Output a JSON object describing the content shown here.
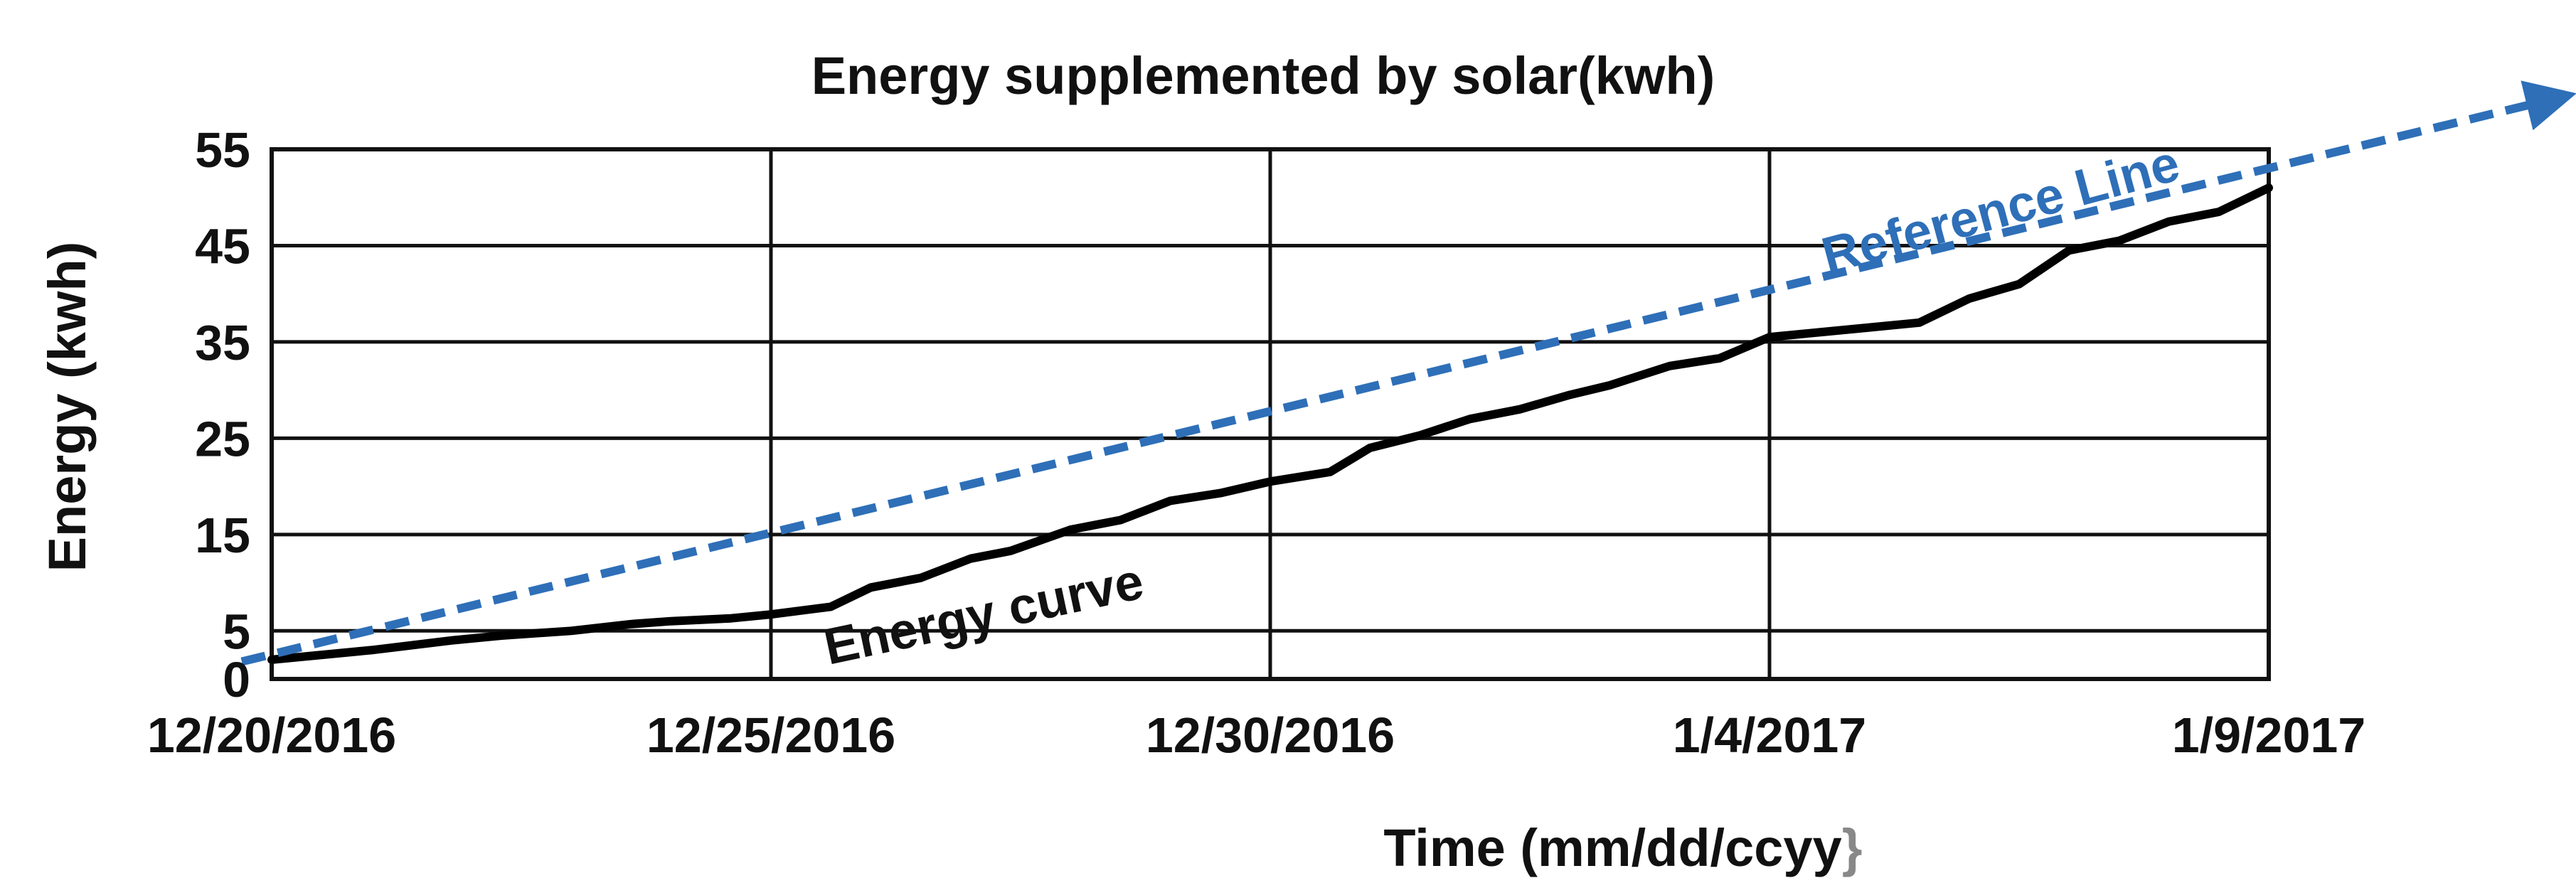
{
  "chart_data": {
    "type": "line",
    "title": "Energy supplemented by solar(kwh)",
    "xlabel": "Time (mm/dd/ccyy",
    "xlabel_suffix": "}",
    "ylabel": "Energy (kwh)",
    "ylim": [
      0,
      55
    ],
    "yticks": [
      0,
      5,
      15,
      25,
      35,
      45,
      55
    ],
    "xlim": [
      0,
      20
    ],
    "xticks": [
      {
        "day": 0,
        "label": "12/20/2016"
      },
      {
        "day": 5,
        "label": "12/25/2016"
      },
      {
        "day": 10,
        "label": "12/30/2016"
      },
      {
        "day": 15,
        "label": "1/4/2017"
      },
      {
        "day": 20,
        "label": "1/9/2017"
      }
    ],
    "grid": true,
    "colors": {
      "energy": "#000000",
      "reference": "#2e6fb8",
      "axis": "#111111",
      "suffix": "#888888"
    },
    "series": [
      {
        "name": "Energy curve",
        "style": "solid",
        "x": [
          0,
          1,
          1.8,
          2.3,
          3,
          3.6,
          4,
          4.6,
          5,
          5.6,
          6,
          6.5,
          7,
          7.4,
          8,
          8.5,
          9,
          9.5,
          10,
          10.6,
          11,
          11.5,
          12,
          12.5,
          13,
          13.4,
          14,
          14.5,
          15,
          15.5,
          16,
          16.5,
          17,
          17.5,
          18,
          18.5,
          19,
          19.5,
          20
        ],
        "values": [
          2,
          3,
          4,
          4.5,
          5,
          5.7,
          6,
          6.3,
          6.7,
          7.5,
          9.5,
          10.5,
          12.5,
          13.3,
          15.5,
          16.5,
          18.5,
          19.3,
          20.5,
          21.5,
          24,
          25.3,
          27,
          28,
          29.5,
          30.5,
          32.5,
          33.3,
          35.5,
          36,
          36.5,
          37,
          39.5,
          41,
          44.5,
          45.5,
          47.5,
          48.5,
          51
        ]
      },
      {
        "name": "Reference Line",
        "style": "dashed",
        "x": [
          -0.3,
          23.0
        ],
        "values": [
          1.8,
          60.6
        ]
      }
    ],
    "annotations": [
      {
        "text": "Energy curve",
        "series": "Energy curve"
      },
      {
        "text": "Reference Line",
        "series": "Reference Line"
      }
    ]
  }
}
